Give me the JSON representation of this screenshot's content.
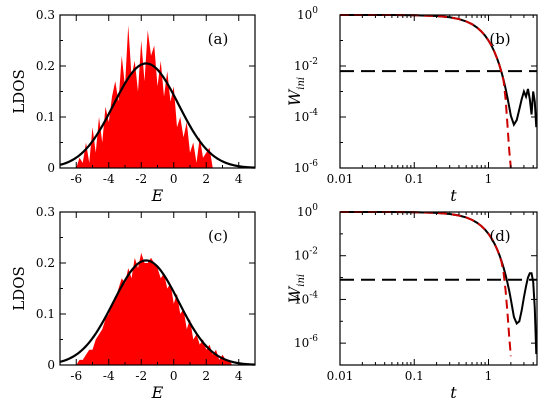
{
  "chart_data": [
    {
      "panel": "(a)",
      "type": "area",
      "xlabel": "E",
      "ylabel": "LDOS",
      "xlim": [
        -7,
        5
      ],
      "ylim": [
        0,
        0.3
      ],
      "xticks": [
        -6,
        -4,
        -2,
        0,
        2,
        4
      ],
      "xtick_labels": [
        "-6",
        "-4",
        "-2",
        "0",
        "2",
        "4"
      ],
      "yticks": [
        0,
        0.1,
        0.2,
        0.3
      ],
      "ytick_labels": [
        "0",
        "0.1",
        "0.2",
        "0.3"
      ],
      "fill_color": "#ff0000",
      "line_color": "#000000",
      "histogram": {
        "x": [
          -6.0,
          -5.8,
          -5.6,
          -5.4,
          -5.2,
          -5.0,
          -4.8,
          -4.6,
          -4.4,
          -4.2,
          -4.0,
          -3.8,
          -3.6,
          -3.4,
          -3.2,
          -3.0,
          -2.8,
          -2.6,
          -2.4,
          -2.2,
          -2.0,
          -1.8,
          -1.6,
          -1.4,
          -1.2,
          -1.0,
          -0.8,
          -0.6,
          -0.4,
          -0.2,
          0.0,
          0.2,
          0.4,
          0.6,
          0.8,
          1.0,
          1.2,
          1.4,
          1.6,
          1.8,
          2.0,
          2.2,
          2.4
        ],
        "y": [
          0.0,
          0.02,
          0.01,
          0.05,
          0.01,
          0.08,
          0.03,
          0.1,
          0.05,
          0.12,
          0.09,
          0.14,
          0.17,
          0.13,
          0.22,
          0.16,
          0.28,
          0.18,
          0.21,
          0.15,
          0.25,
          0.17,
          0.27,
          0.22,
          0.24,
          0.16,
          0.21,
          0.14,
          0.19,
          0.13,
          0.16,
          0.08,
          0.1,
          0.06,
          0.09,
          0.03,
          0.05,
          0.01,
          0.06,
          0.02,
          0.03,
          0.04,
          0.0
        ]
      },
      "curve": {
        "type": "gaussian",
        "mean": -1.7,
        "sigma": 2.0,
        "peak": 0.205
      }
    },
    {
      "panel": "(b)",
      "type": "line",
      "xlabel": "t",
      "ylabel": "W",
      "ylabel_sub": "ini",
      "x_scale": "log",
      "y_scale": "log",
      "xlim": [
        0.01,
        4.5
      ],
      "ylim_exp": [
        -6,
        0
      ],
      "xticks": [
        0.01,
        0.1,
        1
      ],
      "xtick_labels": [
        "0.01",
        "0.1",
        "1"
      ],
      "ytick_exps": [
        -6,
        -4,
        -2,
        0
      ],
      "ytick_base": "10",
      "ytick_sup": [
        "-6",
        "-4",
        "-2",
        "0"
      ],
      "dashed_hline_exp": -2.2,
      "series": [
        {
          "style": "solid",
          "color": "#000000",
          "t": [
            0.01,
            0.05,
            0.1,
            0.2,
            0.3,
            0.4,
            0.5,
            0.6,
            0.7,
            0.8,
            0.9,
            1.0,
            1.1,
            1.2,
            1.3,
            1.4,
            1.5,
            1.6,
            1.7,
            1.8,
            1.9,
            2.0,
            2.2,
            2.4,
            2.6,
            2.8,
            3.0,
            3.2,
            3.4,
            3.6,
            3.8,
            4.0,
            4.2,
            4.4
          ],
          "log10_w": [
            0.0,
            0.0,
            -0.01,
            -0.04,
            -0.09,
            -0.16,
            -0.25,
            -0.36,
            -0.49,
            -0.64,
            -0.81,
            -1.0,
            -1.21,
            -1.44,
            -1.69,
            -1.96,
            -2.25,
            -2.56,
            -2.89,
            -3.24,
            -3.6,
            -3.95,
            -4.3,
            -4.12,
            -3.7,
            -3.3,
            -3.0,
            -3.2,
            -2.9,
            -3.3,
            -3.9,
            -3.0,
            -3.4,
            -4.4
          ]
        },
        {
          "style": "dashed",
          "color": "#cc0000",
          "t": [
            0.01,
            0.05,
            0.1,
            0.2,
            0.3,
            0.4,
            0.5,
            0.6,
            0.7,
            0.8,
            0.9,
            1.0,
            1.1,
            1.2,
            1.3,
            1.4,
            1.5,
            1.6,
            1.7,
            1.8,
            1.9,
            2.0
          ],
          "log10_w": [
            0.0,
            0.0,
            -0.01,
            -0.04,
            -0.09,
            -0.16,
            -0.25,
            -0.36,
            -0.49,
            -0.64,
            -0.81,
            -1.0,
            -1.21,
            -1.44,
            -1.69,
            -1.96,
            -2.25,
            -2.6,
            -3.3,
            -4.3,
            -5.3,
            -6.0
          ]
        }
      ]
    },
    {
      "panel": "(c)",
      "type": "area",
      "xlabel": "E",
      "ylabel": "LDOS",
      "xlim": [
        -7,
        5
      ],
      "ylim": [
        0,
        0.3
      ],
      "xticks": [
        -6,
        -4,
        -2,
        0,
        2,
        4
      ],
      "xtick_labels": [
        "-6",
        "-4",
        "-2",
        "0",
        "2",
        "4"
      ],
      "yticks": [
        0,
        0.1,
        0.2,
        0.3
      ],
      "ytick_labels": [
        "0",
        "0.1",
        "0.2",
        "0.3"
      ],
      "fill_color": "#ff0000",
      "line_color": "#000000",
      "histogram": {
        "x": [
          -6.0,
          -5.8,
          -5.6,
          -5.4,
          -5.2,
          -5.0,
          -4.8,
          -4.6,
          -4.4,
          -4.2,
          -4.0,
          -3.8,
          -3.6,
          -3.4,
          -3.2,
          -3.0,
          -2.8,
          -2.6,
          -2.4,
          -2.2,
          -2.0,
          -1.8,
          -1.6,
          -1.4,
          -1.2,
          -1.0,
          -0.8,
          -0.6,
          -0.4,
          -0.2,
          0.0,
          0.2,
          0.4,
          0.6,
          0.8,
          1.0,
          1.2,
          1.4,
          1.6,
          1.8,
          2.0,
          2.2,
          2.4,
          2.6,
          2.8,
          3.0,
          3.2,
          3.4,
          3.6
        ],
        "y": [
          0.0,
          0.01,
          0.01,
          0.02,
          0.03,
          0.03,
          0.05,
          0.06,
          0.07,
          0.09,
          0.1,
          0.12,
          0.13,
          0.15,
          0.17,
          0.16,
          0.19,
          0.17,
          0.21,
          0.19,
          0.22,
          0.2,
          0.2,
          0.21,
          0.2,
          0.19,
          0.17,
          0.18,
          0.15,
          0.16,
          0.12,
          0.14,
          0.1,
          0.11,
          0.07,
          0.09,
          0.05,
          0.06,
          0.04,
          0.05,
          0.03,
          0.04,
          0.02,
          0.03,
          0.01,
          0.02,
          0.01,
          0.01,
          0.0
        ]
      },
      "curve": {
        "type": "gaussian",
        "mean": -1.7,
        "sigma": 2.0,
        "peak": 0.205
      }
    },
    {
      "panel": "(d)",
      "type": "line",
      "xlabel": "t",
      "ylabel": "W",
      "ylabel_sub": "ini",
      "x_scale": "log",
      "y_scale": "log",
      "xlim": [
        0.01,
        4.5
      ],
      "ylim_exp": [
        -7,
        0
      ],
      "xticks": [
        0.01,
        0.1,
        1
      ],
      "xtick_labels": [
        "0.01",
        "0.1",
        "1"
      ],
      "ytick_exps": [
        -6,
        -4,
        -2,
        0
      ],
      "ytick_base": "10",
      "ytick_sup": [
        "-6",
        "-4",
        "-2",
        "0"
      ],
      "dashed_hline_exp": -3.1,
      "series": [
        {
          "style": "solid",
          "color": "#000000",
          "t": [
            0.01,
            0.05,
            0.1,
            0.2,
            0.3,
            0.4,
            0.5,
            0.6,
            0.7,
            0.8,
            0.9,
            1.0,
            1.1,
            1.2,
            1.3,
            1.4,
            1.5,
            1.6,
            1.7,
            1.8,
            1.9,
            2.0,
            2.2,
            2.4,
            2.6,
            2.8,
            3.0,
            3.2,
            3.4,
            3.6,
            3.8,
            4.0,
            4.2,
            4.4
          ],
          "log10_w": [
            0.0,
            0.0,
            -0.01,
            -0.04,
            -0.09,
            -0.16,
            -0.25,
            -0.36,
            -0.49,
            -0.64,
            -0.81,
            -1.0,
            -1.21,
            -1.44,
            -1.69,
            -1.96,
            -2.25,
            -2.56,
            -2.89,
            -3.24,
            -3.6,
            -4.0,
            -4.8,
            -5.1,
            -5.0,
            -4.5,
            -3.9,
            -3.4,
            -3.0,
            -2.8,
            -2.8,
            -3.2,
            -4.4,
            -6.5
          ]
        },
        {
          "style": "dashed",
          "color": "#cc0000",
          "t": [
            0.01,
            0.05,
            0.1,
            0.2,
            0.3,
            0.4,
            0.5,
            0.6,
            0.7,
            0.8,
            0.9,
            1.0,
            1.1,
            1.2,
            1.3,
            1.4,
            1.5,
            1.6,
            1.7,
            1.8,
            1.9,
            2.0
          ],
          "log10_w": [
            0.0,
            0.0,
            -0.01,
            -0.04,
            -0.09,
            -0.16,
            -0.25,
            -0.36,
            -0.49,
            -0.64,
            -0.81,
            -1.0,
            -1.21,
            -1.44,
            -1.69,
            -1.96,
            -2.3,
            -2.8,
            -3.6,
            -4.6,
            -5.7,
            -6.6
          ]
        }
      ]
    }
  ]
}
